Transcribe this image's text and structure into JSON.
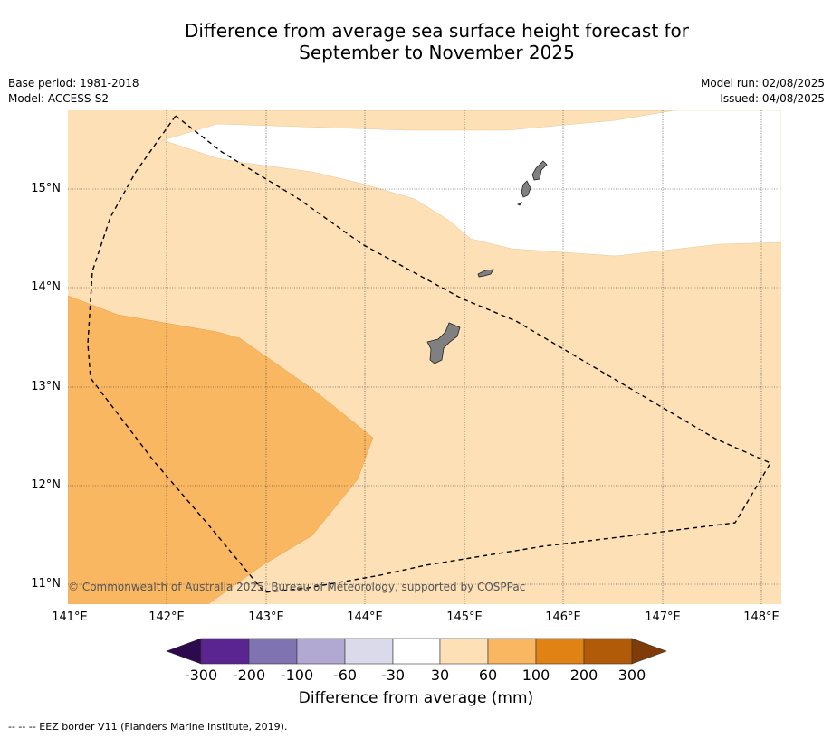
{
  "title_line1": "Difference from average sea surface height forecast for",
  "title_line2": "September to November 2025",
  "base_period": "Base period: 1981-2018",
  "model": "Model: ACCESS-S2",
  "model_run": "Model run: 02/08/2025",
  "issued": "Issued: 04/08/2025",
  "credit": "© Commonwealth of Australia 2025, Bureau of Meteorology, supported by COSPPac",
  "footnote": "--  --  -- EEZ border V11 (Flanders Marine Institute, 2019).",
  "lat_labels": [
    "15°N",
    "14°N",
    "13°N",
    "12°N",
    "11°N"
  ],
  "lon_labels": [
    "141°E",
    "142°E",
    "143°E",
    "144°E",
    "145°E",
    "146°E",
    "147°E",
    "148°E"
  ],
  "colorbar": {
    "title": "Difference from average (mm)",
    "ticks": [
      "-300",
      "-200",
      "-100",
      "-60",
      "-30",
      "30",
      "60",
      "100",
      "200",
      "300"
    ],
    "colors": {
      "below_-300": "#2d0a4e",
      "-300_-200": "#5a2590",
      "-200_-100": "#8073b2",
      "-100_-60": "#b1a9d2",
      "-60_-30": "#dadaeb",
      "-30_30": "#ffffff",
      "30_60": "#fde0b6",
      "60_100": "#fab762",
      "100_200": "#e08314",
      "200_300": "#b15a08",
      "above_300": "#7f3b08"
    }
  },
  "map_data": {
    "lon_range": [
      141.0,
      148.2
    ],
    "lat_range": [
      10.8,
      15.8
    ],
    "regions": [
      {
        "category": "30 to 60",
        "color": "#fde0b6"
      },
      {
        "category": "60 to 100",
        "color": "#fab762"
      },
      {
        "category": "-30 to 30",
        "color": "#ffffff"
      }
    ],
    "land_color": "#808080",
    "eez_style": "dashed black line"
  }
}
